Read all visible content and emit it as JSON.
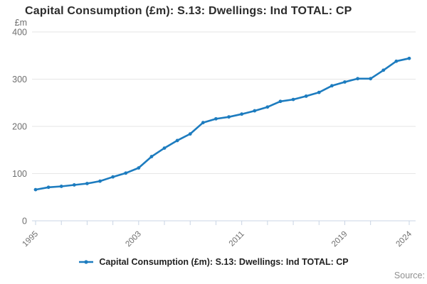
{
  "title": "Capital Consumption (£m): S.13: Dwellings: Ind TOTAL: CP",
  "legend": {
    "label": "Capital Consumption (£m): S.13: Dwellings: Ind TOTAL: CP"
  },
  "source_label": "Source:",
  "colors": {
    "line": "#1d7cbf",
    "grid": "#e6e6e6",
    "axis": "#c9d4e4",
    "tick_label": "#6e6e6e",
    "title_text": "#2b2b2b",
    "legend_text": "#222222",
    "source_text": "#8f8f8f"
  },
  "chart_data": {
    "type": "line",
    "title": "Capital Consumption (£m): S.13: Dwellings: Ind TOTAL: CP",
    "xlabel": "",
    "ylabel": "£m",
    "ylim": [
      0,
      400
    ],
    "y_ticks": [
      0,
      100,
      200,
      300,
      400
    ],
    "x_tick_years": [
      1995,
      1997,
      1999,
      2001,
      2003,
      2005,
      2007,
      2009,
      2011,
      2013,
      2015,
      2017,
      2019,
      2021,
      2024
    ],
    "x_label_years": [
      1995,
      2003,
      2011,
      2019,
      2024
    ],
    "grid": true,
    "legend_position": "bottom",
    "x": [
      1995,
      1996,
      1997,
      1998,
      1999,
      2000,
      2001,
      2002,
      2003,
      2004,
      2005,
      2006,
      2007,
      2008,
      2009,
      2010,
      2011,
      2012,
      2013,
      2014,
      2015,
      2016,
      2017,
      2018,
      2019,
      2020,
      2021,
      2022,
      2023,
      2024
    ],
    "values": [
      66,
      71,
      73,
      76,
      79,
      84,
      93,
      101,
      112,
      136,
      154,
      170,
      184,
      208,
      216,
      220,
      226,
      233,
      241,
      253,
      257,
      264,
      272,
      286,
      294,
      301,
      301,
      319,
      338,
      344
    ]
  }
}
